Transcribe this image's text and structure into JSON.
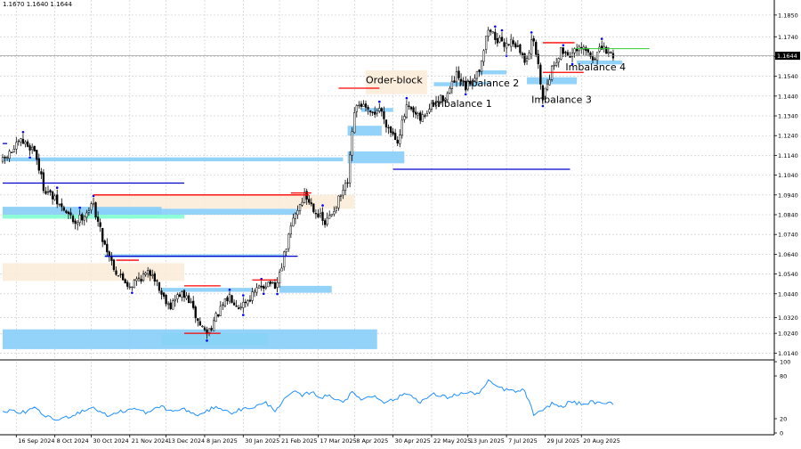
{
  "header": {
    "ohlc_text": "1.1670 1.1640 1.1644"
  },
  "colors": {
    "candle": "#000000",
    "blue_zone": "#87CEFA",
    "order_block": "#FAEBD7",
    "teal_zone": "#7FFFD4",
    "red_line": "#FF0000",
    "blue_line": "#0000CD",
    "green_line": "#32CD32",
    "grid": "#C8C8C8",
    "indicator_line": "#1E90FF",
    "marker": "#0000FF"
  },
  "chart_data": [
    {
      "type": "candlestick",
      "title": "",
      "price_range": [
        1.011,
        1.189
      ],
      "y_ticks": [
        1.185,
        1.174,
        1.164,
        1.154,
        1.144,
        1.134,
        1.124,
        1.114,
        1.104,
        1.094,
        1.084,
        1.074,
        1.064,
        1.054,
        1.044,
        1.032,
        1.024,
        1.014
      ],
      "y_tick_labels": [
        "1.1850",
        "1.1740",
        "1.1644",
        "1.1540",
        "1.1440",
        "1.1340",
        "1.1240",
        "1.1140",
        "1.1040",
        "1.0940",
        "1.0840",
        "1.0740",
        "1.0640",
        "1.0540",
        "1.0440",
        "1.0320",
        "1.0240",
        "1.0140"
      ],
      "current_price": 1.1644,
      "current_price_label": "1.1644",
      "x_tick_labels": [
        "16 Sep 2024",
        "8 Oct 2024",
        "30 Oct 2024",
        "21 Nov 2024",
        "13 Dec 2024",
        "8 Jan 2025",
        "30 Jan 2025",
        "21 Feb 2025",
        "17 Mar 2025",
        "8 Apr 2025",
        "30 Apr 2025",
        "22 May 2025",
        "13 Jun 2025",
        "7 Jul 2025",
        "29 Jul 2025",
        "20 Aug 2025"
      ],
      "x_tick_index": [
        6,
        23,
        39,
        56,
        72,
        89,
        106,
        122,
        139,
        155,
        172,
        189,
        205,
        222,
        239,
        255
      ],
      "candles_count": 270,
      "anchors": [
        [
          0,
          1.111
        ],
        [
          8,
          1.121
        ],
        [
          14,
          1.117
        ],
        [
          18,
          1.098
        ],
        [
          24,
          1.09
        ],
        [
          32,
          1.08
        ],
        [
          40,
          1.089
        ],
        [
          44,
          1.072
        ],
        [
          50,
          1.055
        ],
        [
          56,
          1.048
        ],
        [
          60,
          1.052
        ],
        [
          66,
          1.055
        ],
        [
          70,
          1.044
        ],
        [
          74,
          1.038
        ],
        [
          78,
          1.044
        ],
        [
          82,
          1.041
        ],
        [
          86,
          1.03
        ],
        [
          90,
          1.024
        ],
        [
          95,
          1.034
        ],
        [
          100,
          1.043
        ],
        [
          104,
          1.038
        ],
        [
          108,
          1.041
        ],
        [
          114,
          1.048
        ],
        [
          118,
          1.05
        ],
        [
          120,
          1.045
        ],
        [
          124,
          1.063
        ],
        [
          128,
          1.082
        ],
        [
          133,
          1.094
        ],
        [
          138,
          1.086
        ],
        [
          142,
          1.079
        ],
        [
          146,
          1.087
        ],
        [
          152,
          1.1
        ],
        [
          155,
          1.136
        ],
        [
          158,
          1.14
        ],
        [
          162,
          1.134
        ],
        [
          166,
          1.138
        ],
        [
          170,
          1.128
        ],
        [
          174,
          1.122
        ],
        [
          178,
          1.138
        ],
        [
          184,
          1.132
        ],
        [
          190,
          1.14
        ],
        [
          196,
          1.145
        ],
        [
          200,
          1.154
        ],
        [
          204,
          1.148
        ],
        [
          210,
          1.158
        ],
        [
          214,
          1.178
        ],
        [
          220,
          1.17
        ],
        [
          225,
          1.172
        ],
        [
          230,
          1.162
        ],
        [
          234,
          1.173
        ],
        [
          238,
          1.144
        ],
        [
          242,
          1.158
        ],
        [
          246,
          1.167
        ],
        [
          250,
          1.165
        ],
        [
          256,
          1.168
        ],
        [
          260,
          1.163
        ],
        [
          264,
          1.168
        ],
        [
          268,
          1.165
        ]
      ],
      "zones": [
        {
          "kind": "blue_zone",
          "t0": 0,
          "t1": 150,
          "p0": 1.111,
          "p1": 1.113
        },
        {
          "kind": "blue_zone",
          "t0": 0,
          "t1": 70,
          "p0": 1.084,
          "p1": 1.088
        },
        {
          "kind": "blue_zone",
          "t0": 0,
          "t1": 165,
          "p0": 1.016,
          "p1": 1.026
        },
        {
          "kind": "blue_zone",
          "t0": 45,
          "t1": 125,
          "p0": 1.0625,
          "p1": 1.064
        },
        {
          "kind": "blue_zone",
          "t0": 70,
          "t1": 110,
          "p0": 1.045,
          "p1": 1.047
        },
        {
          "kind": "blue_zone",
          "t0": 122,
          "t1": 145,
          "p0": 1.0445,
          "p1": 1.048
        },
        {
          "kind": "blue_zone",
          "t0": 152,
          "t1": 177,
          "p0": 1.11,
          "p1": 1.116
        },
        {
          "kind": "blue_zone",
          "t0": 152,
          "t1": 167,
          "p0": 1.124,
          "p1": 1.129
        },
        {
          "kind": "blue_zone",
          "t0": 158,
          "t1": 172,
          "p0": 1.136,
          "p1": 1.138
        },
        {
          "kind": "blue_zone",
          "t0": 190,
          "t1": 210,
          "p0": 1.149,
          "p1": 1.151
        },
        {
          "kind": "blue_zone",
          "t0": 200,
          "t1": 215,
          "p0": 1.15,
          "p1": 1.151
        },
        {
          "kind": "blue_zone",
          "t0": 210,
          "t1": 222,
          "p0": 1.155,
          "p1": 1.157
        },
        {
          "kind": "blue_zone",
          "t0": 231,
          "t1": 253,
          "p0": 1.15,
          "p1": 1.1535
        },
        {
          "kind": "blue_zone",
          "t0": 253,
          "t1": 273,
          "p0": 1.16,
          "p1": 1.162
        },
        {
          "kind": "blue_zone",
          "t0": 40,
          "t1": 130,
          "p0": 1.084,
          "p1": 1.087
        },
        {
          "kind": "order_block",
          "t0": 0,
          "t1": 70,
          "p0": 1.082,
          "p1": 1.088
        },
        {
          "kind": "order_block",
          "t0": 0,
          "t1": 80,
          "p0": 1.0505,
          "p1": 1.0595
        },
        {
          "kind": "order_block",
          "t0": 40,
          "t1": 155,
          "p0": 1.087,
          "p1": 1.094
        },
        {
          "kind": "order_block",
          "t0": 160,
          "t1": 187,
          "p0": 1.145,
          "p1": 1.157
        },
        {
          "kind": "teal_zone",
          "t0": 0,
          "t1": 80,
          "p0": 1.082,
          "p1": 1.084
        },
        {
          "kind": "teal_zone",
          "t0": 70,
          "t1": 117,
          "p0": 1.018,
          "p1": 1.024
        }
      ],
      "lines": [
        {
          "color": "red_line",
          "t0": 40,
          "t1": 135,
          "p": 1.094
        },
        {
          "color": "red_line",
          "t0": 50,
          "t1": 60,
          "p": 1.061
        },
        {
          "color": "red_line",
          "t0": 80,
          "t1": 96,
          "p": 1.024
        },
        {
          "color": "red_line",
          "t0": 80,
          "t1": 96,
          "p": 1.048
        },
        {
          "color": "red_line",
          "t0": 110,
          "t1": 121,
          "p": 1.051
        },
        {
          "color": "red_line",
          "t0": 127,
          "t1": 136,
          "p": 1.095
        },
        {
          "color": "red_line",
          "t0": 148,
          "t1": 166,
          "p": 1.148
        },
        {
          "color": "red_line",
          "t0": 238,
          "t1": 256,
          "p": 1.156
        },
        {
          "color": "red_line",
          "t0": 238,
          "t1": 252,
          "p": 1.171
        },
        {
          "color": "blue_line",
          "t0": 0,
          "t1": 80,
          "p": 1.1
        },
        {
          "color": "blue_line",
          "t0": 45,
          "t1": 130,
          "p": 1.063
        },
        {
          "color": "blue_line",
          "t0": 172,
          "t1": 250,
          "p": 1.107
        },
        {
          "color": "blue_line",
          "t0": 0,
          "t1": 2,
          "p": 1.12
        },
        {
          "color": "green_line",
          "t0": 252,
          "t1": 285,
          "p": 1.168
        }
      ],
      "annotations": [
        {
          "text": "Order-block",
          "t": 160,
          "p": 1.1505
        },
        {
          "text": "Imbalance 2",
          "t": 201,
          "p": 1.149
        },
        {
          "text": "Imbalance 1",
          "t": 189,
          "p": 1.1385
        },
        {
          "text": "Imbalance 3",
          "t": 233,
          "p": 1.1405
        },
        {
          "text": "Imbalance 4",
          "t": 248,
          "p": 1.157
        }
      ]
    },
    {
      "type": "line",
      "title": "",
      "ylim": [
        0,
        100
      ],
      "y_ticks": [
        100,
        80,
        20,
        0
      ],
      "y_tick_labels": [
        "100",
        "80",
        "20",
        "0"
      ],
      "anchors": [
        [
          0,
          32
        ],
        [
          8,
          28
        ],
        [
          14,
          34
        ],
        [
          20,
          22
        ],
        [
          24,
          18
        ],
        [
          30,
          24
        ],
        [
          36,
          32
        ],
        [
          40,
          36
        ],
        [
          46,
          24
        ],
        [
          52,
          30
        ],
        [
          58,
          34
        ],
        [
          64,
          28
        ],
        [
          70,
          38
        ],
        [
          74,
          30
        ],
        [
          80,
          34
        ],
        [
          84,
          26
        ],
        [
          88,
          26
        ],
        [
          94,
          38
        ],
        [
          100,
          28
        ],
        [
          104,
          32
        ],
        [
          110,
          36
        ],
        [
          116,
          42
        ],
        [
          120,
          32
        ],
        [
          124,
          46
        ],
        [
          128,
          58
        ],
        [
          132,
          52
        ],
        [
          136,
          58
        ],
        [
          140,
          50
        ],
        [
          144,
          52
        ],
        [
          150,
          44
        ],
        [
          154,
          56
        ],
        [
          158,
          48
        ],
        [
          164,
          52
        ],
        [
          168,
          44
        ],
        [
          172,
          46
        ],
        [
          178,
          56
        ],
        [
          184,
          44
        ],
        [
          190,
          54
        ],
        [
          196,
          50
        ],
        [
          200,
          54
        ],
        [
          204,
          56
        ],
        [
          210,
          56
        ],
        [
          214,
          72
        ],
        [
          220,
          62
        ],
        [
          226,
          58
        ],
        [
          230,
          60
        ],
        [
          234,
          26
        ],
        [
          238,
          30
        ],
        [
          242,
          42
        ],
        [
          246,
          36
        ],
        [
          250,
          44
        ],
        [
          256,
          40
        ],
        [
          260,
          44
        ],
        [
          264,
          40
        ],
        [
          268,
          42
        ]
      ]
    }
  ]
}
